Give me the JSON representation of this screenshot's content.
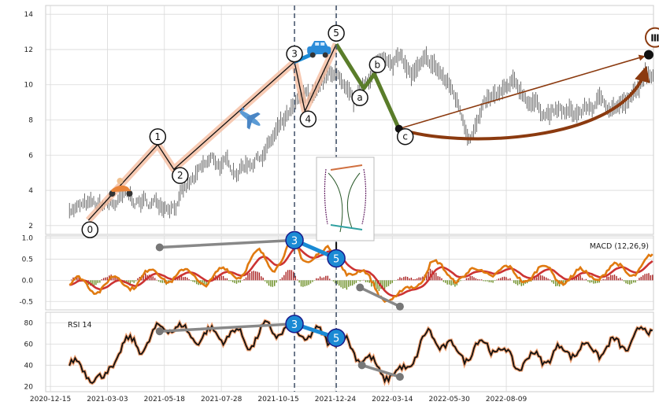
{
  "chart_data": [
    {
      "type": "line",
      "panel": "price",
      "ylim": [
        1.5,
        14.5
      ],
      "yticks": [
        "2",
        "4",
        "6",
        "8",
        "10",
        "12",
        "14"
      ],
      "xticks": [
        "2020-12-15",
        "2021-03-03",
        "2021-05-18",
        "2021-07-28",
        "2021-10-15",
        "2021-12-24",
        "2022-03-14",
        "2022-05-30",
        "2022-08-09"
      ],
      "x_range_days": [
        -25,
        615
      ],
      "series": [
        {
          "values_from": "hlc-bars",
          "color": "#333333",
          "x": [
            0,
            30,
            60,
            88,
            115,
            150,
            175,
            205,
            230,
            260,
            280,
            290,
            300,
            315,
            330,
            345,
            360,
            380,
            390,
            405,
            420,
            440,
            470,
            500,
            530,
            560,
            590,
            615
          ],
          "values": [
            3.1,
            2.9,
            3.4,
            3.2,
            3.6,
            5.5,
            5.2,
            6.3,
            8.0,
            9.6,
            10.8,
            9.2,
            8.4,
            10.5,
            11.3,
            11.8,
            10.5,
            11.0,
            10.6,
            9.4,
            7.4,
            8.8,
            9.7,
            8.6,
            8.2,
            9.0,
            8.9,
            10.9
          ]
        }
      ],
      "waves_main": [
        {
          "label": "0",
          "x": 20,
          "y": 2.3
        },
        {
          "label": "1",
          "x": 93,
          "y": 6.6
        },
        {
          "label": "2",
          "x": 110,
          "y": 5.2
        },
        {
          "label": "3",
          "x": 237,
          "y": 11.3
        },
        {
          "label": "4",
          "x": 248,
          "y": 8.5
        },
        {
          "label": "5",
          "x": 281,
          "y": 12.3
        }
      ],
      "waves_correction": [
        {
          "label": "a",
          "x": 310,
          "y": 9.8
        },
        {
          "label": "b",
          "x": 321,
          "y": 10.6
        },
        {
          "label": "c",
          "x": 347,
          "y": 7.5
        }
      ],
      "projection_label": "Ⅲ",
      "projection_point": {
        "x": 610,
        "y": 11.7
      },
      "icons": [
        "scooter-icon",
        "airplane-icon",
        "car-icon"
      ],
      "vlines_x": [
        237,
        281
      ]
    },
    {
      "type": "line",
      "panel": "macd",
      "title": "MACD (12,26,9)",
      "ylim": [
        -0.7,
        1.05
      ],
      "yticks": [
        "1.0",
        "0.5",
        "0.0",
        "-0.5"
      ],
      "divergence_labels": [
        "3",
        "5"
      ],
      "colors": {
        "macd": "#e07a10",
        "signal": "#cc3333",
        "hist_pos": "#aa2222",
        "hist_neg": "#6b8e23"
      }
    },
    {
      "type": "line",
      "panel": "rsi",
      "title": "RSI 14",
      "ylim": [
        15,
        90
      ],
      "yticks": [
        "80",
        "60",
        "40",
        "20"
      ],
      "divergence_labels": [
        "3",
        "5"
      ]
    }
  ],
  "colors": {
    "grid": "#d9d9d9",
    "impulse": "#f4b89a",
    "correction": "#5a7d2a",
    "projection": "#8b3a0f",
    "divergence": "#1a8ad4",
    "divergence_gray": "#888888",
    "vline": "#4a5a70"
  }
}
